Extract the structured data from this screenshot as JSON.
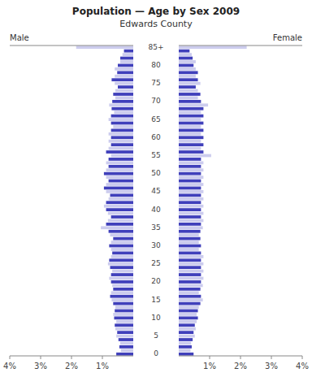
{
  "chart_data": {
    "type": "bar",
    "orientation": "horizontal",
    "title": "Population — Age by Sex 2009",
    "subtitle": "Edwards County",
    "categories": [
      "0",
      null,
      null,
      null,
      null,
      "5",
      null,
      null,
      null,
      null,
      "10",
      null,
      null,
      null,
      null,
      "15",
      null,
      null,
      null,
      null,
      "20",
      null,
      null,
      null,
      null,
      "25",
      null,
      null,
      null,
      null,
      "30",
      null,
      null,
      null,
      null,
      "35",
      null,
      null,
      null,
      null,
      "40",
      null,
      null,
      null,
      null,
      "45",
      null,
      null,
      null,
      null,
      "50",
      null,
      null,
      null,
      null,
      "55",
      null,
      null,
      null,
      null,
      "60",
      null,
      null,
      null,
      null,
      "65",
      null,
      null,
      null,
      null,
      "70",
      null,
      null,
      null,
      null,
      "75",
      null,
      null,
      null,
      null,
      "80",
      null,
      null,
      null,
      null,
      "85+"
    ],
    "colors": [
      "#4040bb",
      "#ccccee",
      "#4040bb",
      "#ccccee",
      "#4040bb",
      "#ccccee",
      "#4040bb",
      "#ccccee",
      "#4040bb",
      "#ccccee",
      "#4040bb",
      "#ccccee",
      "#4040bb",
      "#ccccee",
      "#4040bb",
      "#ccccee",
      "#4040bb",
      "#ccccee",
      "#4040bb",
      "#ccccee",
      "#4040bb",
      "#ccccee",
      "#4040bb",
      "#ccccee",
      "#4040bb",
      "#ccccee",
      "#4040bb",
      "#ccccee",
      "#4040bb",
      "#ccccee",
      "#4040bb",
      "#ccccee",
      "#4040bb",
      "#ccccee",
      "#4040bb",
      "#ccccee",
      "#4040bb",
      "#ccccee",
      "#4040bb",
      "#ccccee",
      "#4040bb",
      "#ccccee",
      "#4040bb",
      "#ccccee",
      "#4040bb",
      "#ccccee",
      "#4040bb",
      "#ccccee",
      "#4040bb",
      "#ccccee",
      "#4040bb",
      "#ccccee",
      "#4040bb",
      "#ccccee",
      "#4040bb",
      "#ccccee",
      "#4040bb",
      "#ccccee",
      "#4040bb",
      "#ccccee",
      "#4040bb",
      "#ccccee",
      "#4040bb",
      "#ccccee",
      "#4040bb",
      "#ccccee",
      "#4040bb",
      "#ccccee",
      "#4040bb",
      "#ccccee",
      "#4040bb",
      "#ccccee",
      "#4040bb",
      "#ccccee",
      "#4040bb",
      "#ccccee",
      "#4040bb",
      "#ccccee",
      "#4040bb",
      "#ccccee",
      "#4040bb",
      "#ccccee",
      "#4040bb",
      "#ccccee",
      "#4040bb",
      "#ccccee"
    ],
    "series": [
      {
        "name": "Male",
        "values": [
          0.55,
          0.4,
          0.45,
          0.42,
          0.48,
          0.55,
          0.52,
          0.58,
          0.6,
          0.55,
          0.62,
          0.65,
          0.6,
          0.58,
          0.65,
          0.7,
          0.75,
          0.72,
          0.65,
          0.68,
          0.72,
          0.78,
          0.72,
          0.68,
          0.75,
          0.82,
          0.78,
          0.72,
          0.68,
          0.72,
          0.78,
          0.72,
          0.65,
          0.75,
          0.8,
          1.05,
          0.88,
          0.82,
          0.72,
          0.82,
          0.88,
          0.95,
          0.88,
          0.8,
          0.75,
          0.88,
          0.95,
          0.88,
          0.8,
          0.88,
          0.95,
          0.88,
          0.8,
          0.88,
          0.8,
          0.72,
          0.88,
          0.8,
          0.72,
          0.8,
          0.72,
          0.8,
          0.72,
          0.65,
          0.72,
          0.8,
          0.72,
          0.62,
          0.7,
          0.78,
          0.68,
          0.58,
          0.65,
          0.58,
          0.5,
          0.6,
          0.7,
          0.6,
          0.52,
          0.6,
          0.5,
          0.42,
          0.42,
          0.35,
          0.3,
          1.85
        ]
      },
      {
        "name": "Female",
        "values": [
          0.48,
          0.38,
          0.42,
          0.4,
          0.45,
          0.52,
          0.48,
          0.55,
          0.52,
          0.58,
          0.62,
          0.58,
          0.62,
          0.65,
          0.7,
          0.78,
          0.72,
          0.65,
          0.7,
          0.78,
          0.72,
          0.8,
          0.72,
          0.8,
          0.72,
          0.8,
          0.72,
          0.8,
          0.72,
          0.65,
          0.72,
          0.65,
          0.7,
          0.65,
          0.7,
          0.78,
          0.72,
          0.8,
          0.72,
          0.8,
          0.72,
          0.8,
          0.72,
          0.8,
          0.72,
          0.8,
          0.72,
          0.8,
          0.72,
          0.8,
          0.72,
          0.8,
          0.72,
          0.8,
          0.72,
          1.05,
          0.8,
          0.72,
          0.8,
          0.72,
          0.8,
          0.72,
          0.8,
          0.72,
          0.8,
          0.72,
          0.8,
          0.72,
          0.8,
          0.95,
          0.72,
          0.62,
          0.7,
          0.62,
          0.55,
          0.7,
          0.62,
          0.55,
          0.62,
          0.55,
          0.48,
          0.55,
          0.45,
          0.42,
          0.35,
          2.2
        ]
      }
    ],
    "xlim": [
      0,
      4
    ],
    "xticks": [
      {
        "value": 1,
        "label": "1%"
      },
      {
        "value": 2,
        "label": "2%"
      },
      {
        "value": 3,
        "label": "3%"
      },
      {
        "value": 4,
        "label": "4%"
      }
    ]
  }
}
